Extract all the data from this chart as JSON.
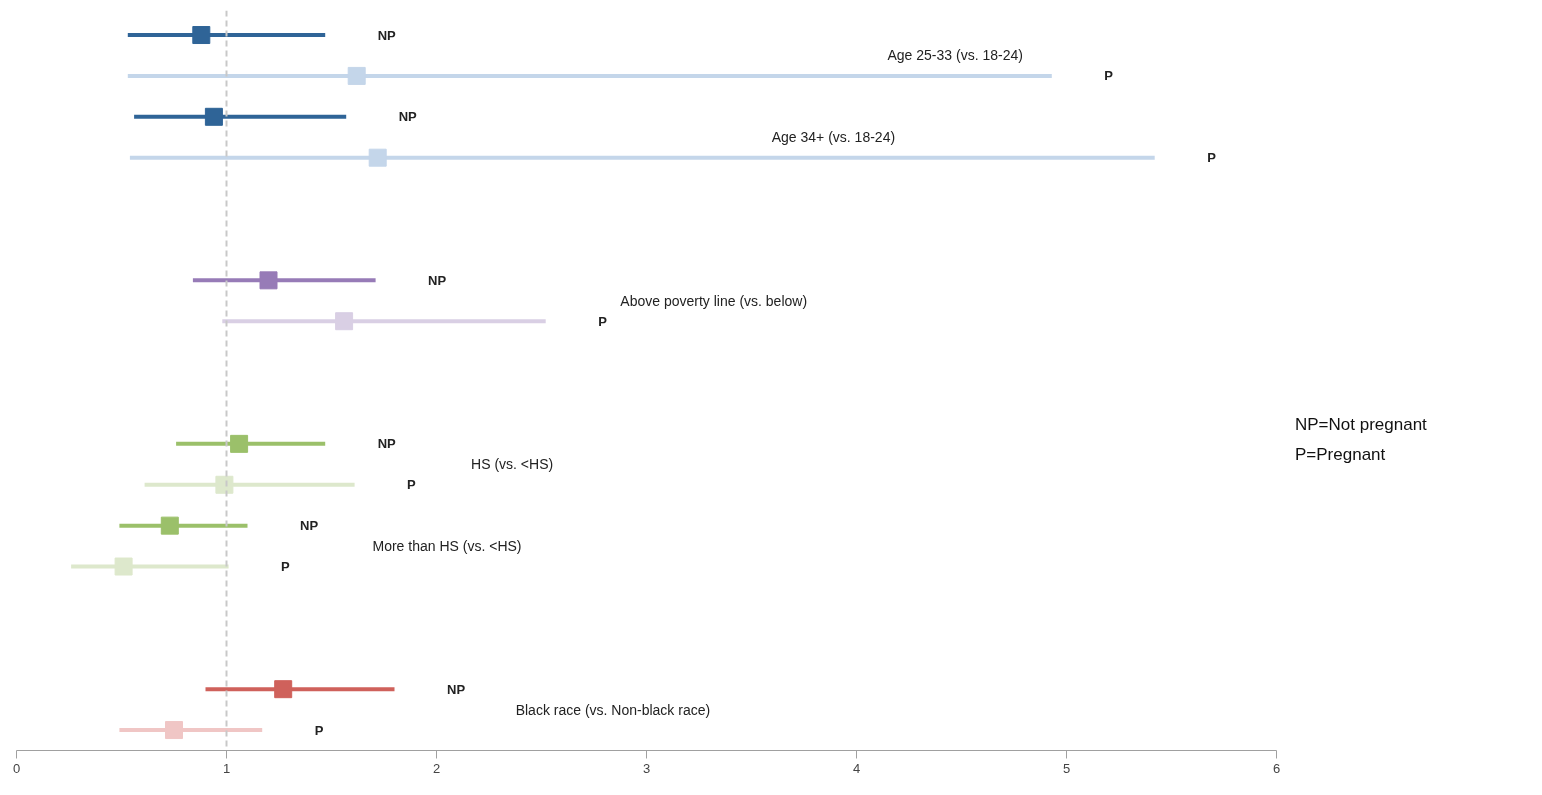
{
  "chart_data": {
    "type": "scatter",
    "orientation": "horizontal",
    "marker": "square",
    "grid": false,
    "tick_labels": "x",
    "categories": [
      null,
      null,
      null,
      null,
      null,
      null,
      null,
      null,
      null,
      null,
      null,
      null,
      null,
      null,
      null,
      null,
      null,
      null
    ],
    "xlim": [
      0,
      6
    ],
    "xticks": [
      0,
      1,
      2,
      3,
      4,
      5,
      6
    ],
    "ref_lines": [
      {
        "axis": "x",
        "value": 1,
        "color": "#c8c8c8",
        "line_style": "dashed"
      }
    ],
    "series": [
      {
        "name": "NP",
        "color": "#2f6497",
        "values": [
          0.88,
          null,
          null,
          null,
          null,
          null,
          null,
          null,
          null,
          null,
          null,
          null,
          null,
          null,
          null,
          null,
          null,
          null
        ],
        "errors": [
          [
            0.53,
            1.47
          ],
          null,
          null,
          null,
          null,
          null,
          null,
          null,
          null,
          null,
          null,
          null,
          null,
          null,
          null,
          null,
          null,
          null
        ]
      },
      {
        "name": "P",
        "color": "#c4d6ea",
        "values": [
          null,
          1.62,
          null,
          null,
          null,
          null,
          null,
          null,
          null,
          null,
          null,
          null,
          null,
          null,
          null,
          null,
          null,
          null
        ],
        "errors": [
          null,
          [
            0.53,
            4.93
          ],
          null,
          null,
          null,
          null,
          null,
          null,
          null,
          null,
          null,
          null,
          null,
          null,
          null,
          null,
          null,
          null
        ]
      },
      {
        "name": "NP",
        "color": "#2f6497",
        "values": [
          null,
          null,
          0.94,
          null,
          null,
          null,
          null,
          null,
          null,
          null,
          null,
          null,
          null,
          null,
          null,
          null,
          null,
          null
        ],
        "errors": [
          null,
          null,
          [
            0.56,
            1.57
          ],
          null,
          null,
          null,
          null,
          null,
          null,
          null,
          null,
          null,
          null,
          null,
          null,
          null,
          null,
          null
        ]
      },
      {
        "name": "P",
        "color": "#c4d6ea",
        "values": [
          null,
          null,
          null,
          1.72,
          null,
          null,
          null,
          null,
          null,
          null,
          null,
          null,
          null,
          null,
          null,
          null,
          null,
          null
        ],
        "errors": [
          null,
          null,
          null,
          [
            0.54,
            5.42
          ],
          null,
          null,
          null,
          null,
          null,
          null,
          null,
          null,
          null,
          null,
          null,
          null,
          null,
          null
        ]
      },
      {
        "name": "NP",
        "color": "#977bb7",
        "values": [
          null,
          null,
          null,
          null,
          null,
          null,
          1.2,
          null,
          null,
          null,
          null,
          null,
          null,
          null,
          null,
          null,
          null,
          null
        ],
        "errors": [
          null,
          null,
          null,
          null,
          null,
          null,
          [
            0.84,
            1.71
          ],
          null,
          null,
          null,
          null,
          null,
          null,
          null,
          null,
          null,
          null,
          null
        ]
      },
      {
        "name": "P",
        "color": "#d9cfe4",
        "values": [
          null,
          null,
          null,
          null,
          null,
          null,
          null,
          1.56,
          null,
          null,
          null,
          null,
          null,
          null,
          null,
          null,
          null,
          null
        ],
        "errors": [
          null,
          null,
          null,
          null,
          null,
          null,
          null,
          [
            0.98,
            2.52
          ],
          null,
          null,
          null,
          null,
          null,
          null,
          null,
          null,
          null,
          null
        ]
      },
      {
        "name": "NP",
        "color": "#9bc06a",
        "values": [
          null,
          null,
          null,
          null,
          null,
          null,
          null,
          null,
          null,
          null,
          1.06,
          null,
          null,
          null,
          null,
          null,
          null,
          null
        ],
        "errors": [
          null,
          null,
          null,
          null,
          null,
          null,
          null,
          null,
          null,
          null,
          [
            0.76,
            1.47
          ],
          null,
          null,
          null,
          null,
          null,
          null,
          null
        ]
      },
      {
        "name": "P",
        "color": "#dde8cc",
        "values": [
          null,
          null,
          null,
          null,
          null,
          null,
          null,
          null,
          null,
          null,
          null,
          0.99,
          null,
          null,
          null,
          null,
          null,
          null
        ],
        "errors": [
          null,
          null,
          null,
          null,
          null,
          null,
          null,
          null,
          null,
          null,
          null,
          [
            0.61,
            1.61
          ],
          null,
          null,
          null,
          null,
          null,
          null
        ]
      },
      {
        "name": "NP",
        "color": "#9bc06a",
        "values": [
          null,
          null,
          null,
          null,
          null,
          null,
          null,
          null,
          null,
          null,
          null,
          null,
          0.73,
          null,
          null,
          null,
          null,
          null
        ],
        "errors": [
          null,
          null,
          null,
          null,
          null,
          null,
          null,
          null,
          null,
          null,
          null,
          null,
          [
            0.49,
            1.1
          ],
          null,
          null,
          null,
          null,
          null
        ]
      },
      {
        "name": "P",
        "color": "#dde8cc",
        "values": [
          null,
          null,
          null,
          null,
          null,
          null,
          null,
          null,
          null,
          null,
          null,
          null,
          null,
          0.51,
          null,
          null,
          null,
          null
        ],
        "errors": [
          null,
          null,
          null,
          null,
          null,
          null,
          null,
          null,
          null,
          null,
          null,
          null,
          null,
          [
            0.26,
            1.01
          ],
          null,
          null,
          null,
          null
        ]
      },
      {
        "name": "NP",
        "color": "#cf615b",
        "values": [
          null,
          null,
          null,
          null,
          null,
          null,
          null,
          null,
          null,
          null,
          null,
          null,
          null,
          null,
          null,
          null,
          1.27,
          null
        ],
        "errors": [
          null,
          null,
          null,
          null,
          null,
          null,
          null,
          null,
          null,
          null,
          null,
          null,
          null,
          null,
          null,
          null,
          [
            0.9,
            1.8
          ],
          null
        ]
      },
      {
        "name": "P",
        "color": "#f0c6c5",
        "values": [
          null,
          null,
          null,
          null,
          null,
          null,
          null,
          null,
          null,
          null,
          null,
          null,
          null,
          null,
          null,
          null,
          null,
          0.75
        ],
        "errors": [
          null,
          null,
          null,
          null,
          null,
          null,
          null,
          null,
          null,
          null,
          null,
          null,
          null,
          null,
          null,
          null,
          null,
          [
            0.49,
            1.17
          ]
        ]
      }
    ],
    "annotations": [
      "Age 25-33 (vs. 18-24)",
      "Age 34+ (vs. 18-24)",
      "Above poverty line (vs. below)",
      "HS (vs. <HS)",
      "More than HS (vs. <HS)",
      "Black race (vs. Non-black race)",
      "NP=Not pregnant",
      "P=Pregnant"
    ]
  }
}
